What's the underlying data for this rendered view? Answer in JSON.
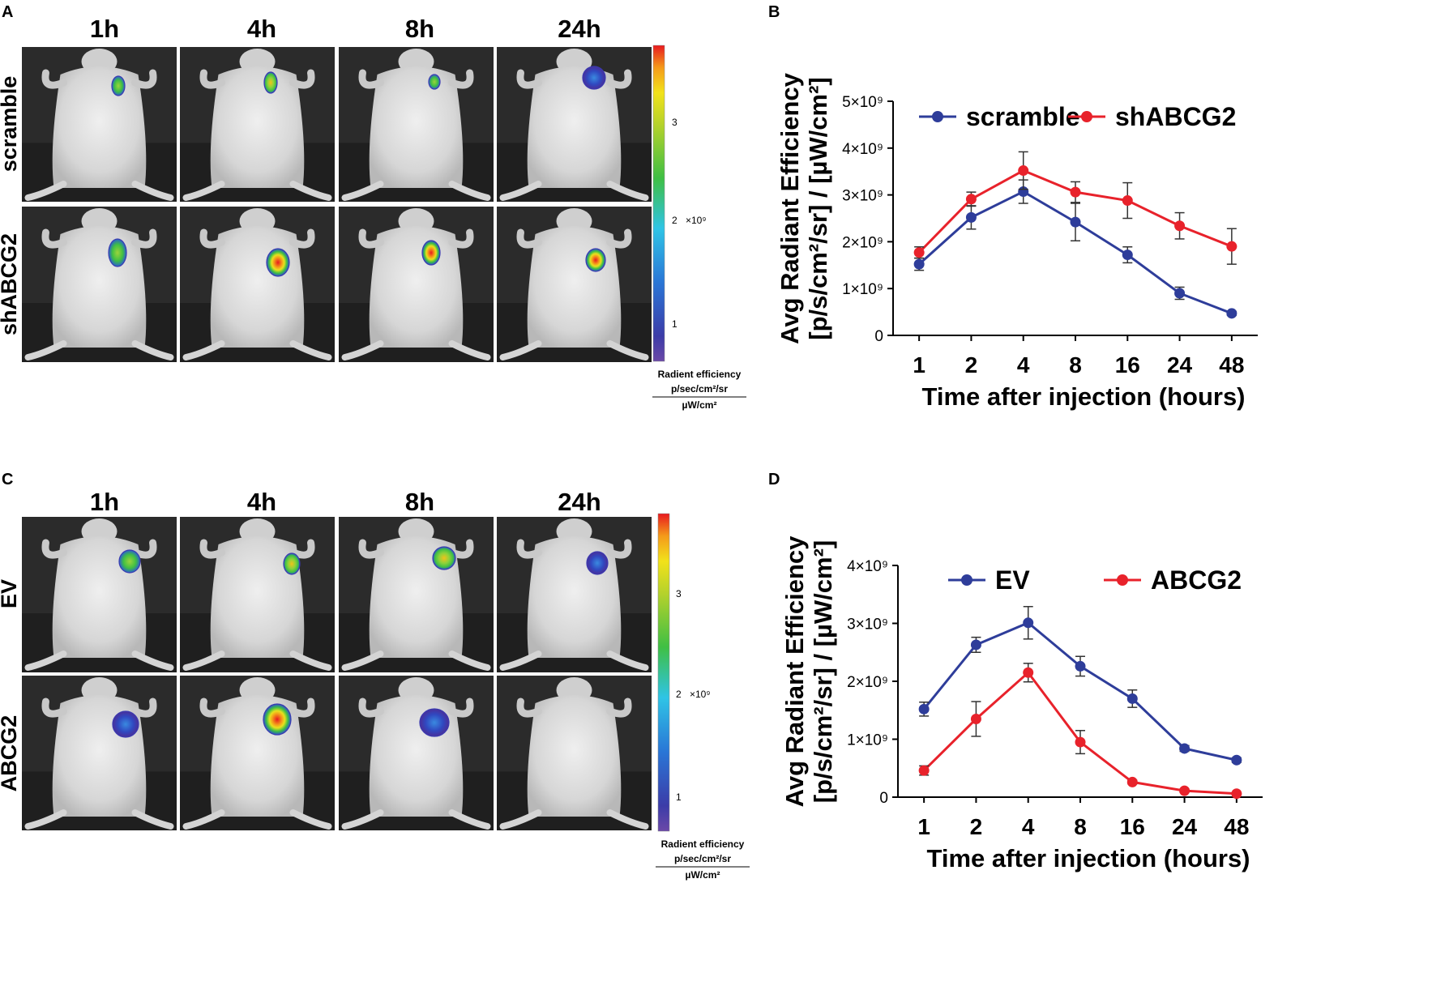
{
  "figure": {
    "panels": {
      "A": {
        "label": "A",
        "columns": [
          "1h",
          "4h",
          "8h",
          "24h"
        ],
        "rows": [
          "scramble",
          "shABCG2"
        ],
        "colorbar": {
          "ticks": [
            "3",
            "2",
            "1"
          ],
          "multiplier": "×10⁹",
          "title": "Radient efficiency",
          "numerator": "p/sec/cm²/sr",
          "denominator": "µW/cm²"
        }
      },
      "C": {
        "label": "C",
        "columns": [
          "1h",
          "4h",
          "8h",
          "24h"
        ],
        "rows": [
          "EV",
          "ABCG2"
        ],
        "colorbar": {
          "ticks": [
            "3",
            "2",
            "1"
          ],
          "multiplier": "×10⁹",
          "title": "Radient efficiency",
          "numerator": "p/sec/cm²/sr",
          "denominator": "µW/cm²"
        }
      }
    },
    "colors": {
      "blue": "#2e3d9a",
      "red": "#e8222b",
      "imaging_bg": "#2b2b2b",
      "mouse": "#d9d9d9"
    }
  },
  "chart_data": [
    {
      "panel": "B",
      "type": "line",
      "categories": [
        "1",
        "2",
        "4",
        "8",
        "16",
        "24",
        "48"
      ],
      "series": [
        {
          "name": "scramble",
          "color": "#2e3d9a",
          "values": [
            1.52,
            2.52,
            3.07,
            2.42,
            1.72,
            0.9,
            0.47
          ],
          "errors": [
            0.13,
            0.25,
            0.25,
            0.4,
            0.17,
            0.13,
            0.04
          ]
        },
        {
          "name": "shABCG2",
          "color": "#e8222b",
          "values": [
            1.77,
            2.91,
            3.52,
            3.06,
            2.88,
            2.34,
            1.9
          ],
          "errors": [
            0.12,
            0.15,
            0.4,
            0.22,
            0.38,
            0.28,
            0.38
          ]
        }
      ],
      "ylim": [
        0,
        5
      ],
      "yticks": [
        "0",
        "1×10⁹",
        "2×10⁹",
        "3×10⁹",
        "4×10⁹",
        "5×10⁹"
      ],
      "xlabel": "Time after injection (hours)",
      "ylabel_line1": "Avg Radiant Efficiency",
      "ylabel_line2": "[p/s/cm²/sr] / [µW/cm²]",
      "legend": "top"
    },
    {
      "panel": "D",
      "type": "line",
      "categories": [
        "1",
        "2",
        "4",
        "8",
        "16",
        "24",
        "48"
      ],
      "series": [
        {
          "name": "EV",
          "color": "#2e3d9a",
          "values": [
            1.52,
            2.63,
            3.01,
            2.26,
            1.7,
            0.84,
            0.64
          ],
          "errors": [
            0.12,
            0.13,
            0.28,
            0.17,
            0.15,
            0.05,
            0.04
          ]
        },
        {
          "name": "ABCG2",
          "color": "#e8222b",
          "values": [
            0.46,
            1.35,
            2.15,
            0.95,
            0.26,
            0.11,
            0.06
          ],
          "errors": [
            0.08,
            0.3,
            0.16,
            0.2,
            0.03,
            0.03,
            0.02
          ]
        }
      ],
      "ylim": [
        0,
        4
      ],
      "yticks": [
        "0",
        "1×10⁹",
        "2×10⁹",
        "3×10⁹",
        "4×10⁹"
      ],
      "xlabel": "Time after injection (hours)",
      "ylabel_line1": "Avg Radiant Efficiency",
      "ylabel_line2": "[p/s/cm²/sr] / [µW/cm²]",
      "legend": "top"
    }
  ]
}
